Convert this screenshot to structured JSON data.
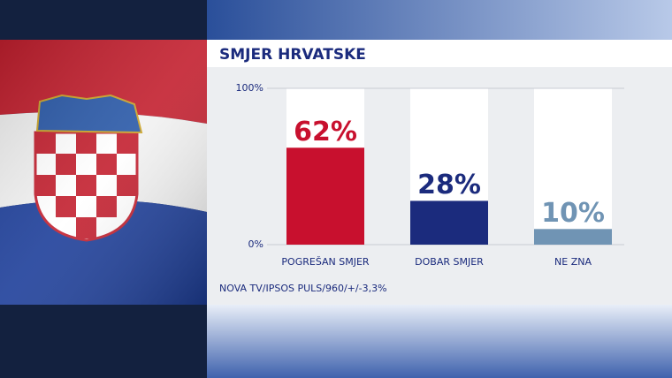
{
  "chart_data": {
    "type": "bar",
    "title": "SMJER HRVATSKE",
    "categories": [
      "POGREŠAN SMJER",
      "DOBAR SMJER",
      "NE ZNA"
    ],
    "values": [
      62,
      28,
      10
    ],
    "value_labels": [
      "62%",
      "28%",
      "10%"
    ],
    "colors": [
      "#c8102e",
      "#1b2b7d",
      "#7094b4"
    ],
    "ylim": [
      0,
      100
    ],
    "yticks": [
      {
        "value": 0,
        "label": "0%"
      },
      {
        "value": 100,
        "label": "100%"
      }
    ],
    "source": "NOVA TV/IPSOS PULS/960/+/-3,3%"
  }
}
